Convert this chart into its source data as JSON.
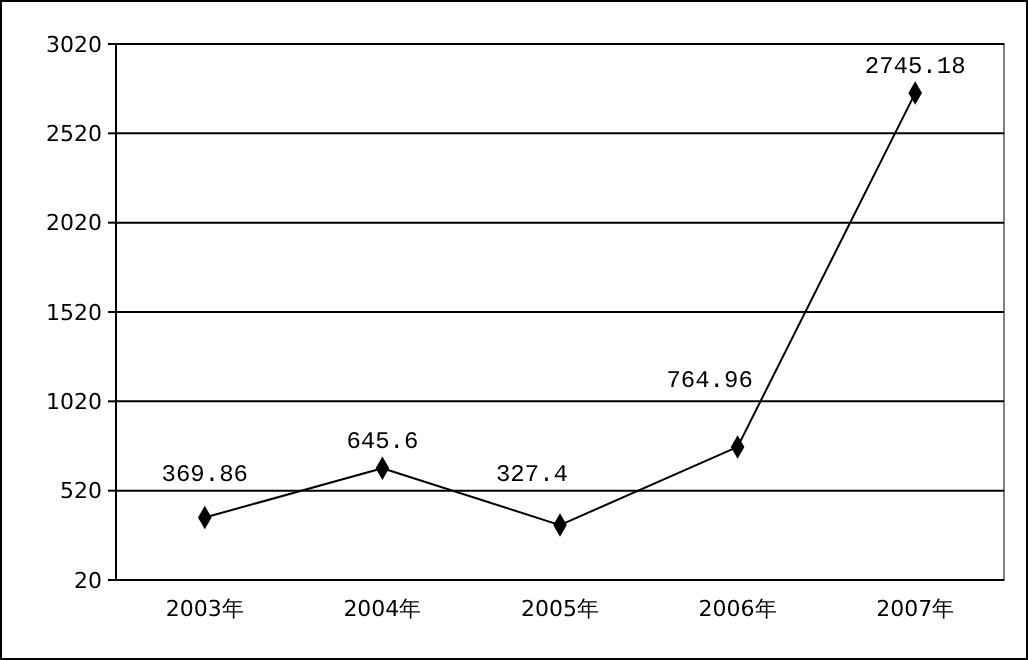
{
  "chart_data": {
    "type": "line",
    "categories": [
      "2003年",
      "2004年",
      "2005年",
      "2006年",
      "2007年"
    ],
    "series": [
      {
        "color": "#000000",
        "values": [
          369.86,
          645.6,
          327.4,
          764.96,
          2745.18
        ]
      }
    ],
    "ylim": [
      20,
      3020
    ],
    "yticks": [
      20,
      520,
      1020,
      1520,
      2020,
      2520,
      3020
    ],
    "grid": "y",
    "marker": "diamond",
    "line_style": "solid",
    "data_labels": true
  }
}
